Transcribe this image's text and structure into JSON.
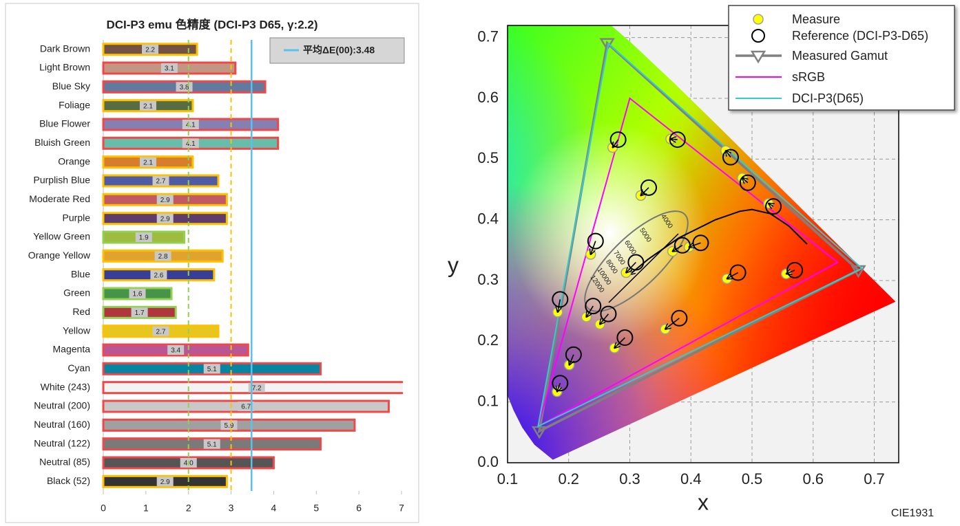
{
  "chart_data": [
    {
      "type": "bar",
      "orientation": "horizontal",
      "title": "DCI-P3 emu 色精度 (DCI-P3 D65, γ:2.2)",
      "categories": [
        "Dark Brown",
        "Light Brown",
        "Blue Sky",
        "Foliage",
        "Blue Flower",
        "Bluish Green",
        "Orange",
        "Purplish Blue",
        "Moderate Red",
        "Purple",
        "Yellow Green",
        "Orange Yellow",
        "Blue",
        "Green",
        "Red",
        "Yellow",
        "Magenta",
        "Cyan",
        "White (243)",
        "Neutral (200)",
        "Neutral (160)",
        "Neutral (122)",
        "Neutral (85)",
        "Black (52)"
      ],
      "values": [
        2.2,
        3.1,
        3.8,
        2.1,
        4.1,
        4.1,
        2.1,
        2.7,
        2.9,
        2.9,
        1.9,
        2.8,
        2.6,
        1.6,
        1.7,
        2.7,
        3.4,
        5.1,
        7.2,
        6.7,
        5.9,
        5.1,
        4.0,
        2.9
      ],
      "value_labels": [
        "2.2",
        "3.1",
        "3.8",
        "2.1",
        "4.1",
        "4.1",
        "2.1",
        "2.7",
        "2.9",
        "2.9",
        "1.9",
        "2.8",
        "2.6",
        "1.6",
        "1.7",
        "2.7",
        "3.4",
        "5.1",
        "7.2",
        "6.7",
        "5.9",
        "5.1",
        "4.0",
        "2.9"
      ],
      "colors": [
        "#735244",
        "#c29682",
        "#627a9d",
        "#576c43",
        "#8580b1",
        "#67bdaa",
        "#d67e2c",
        "#505ba6",
        "#c15a63",
        "#5e3c6c",
        "#9dbc40",
        "#e0a32e",
        "#383d96",
        "#469449",
        "#af363c",
        "#e7c71f",
        "#bb5695",
        "#0885a1",
        "#f3f3f3",
        "#c8c8c8",
        "#a0a0a0",
        "#7a7a7a",
        "#555555",
        "#343434"
      ],
      "border_colors": [
        "#ffc000",
        "#f04848",
        "#f04848",
        "#ffc000",
        "#f04848",
        "#f04848",
        "#ffc000",
        "#ffc000",
        "#ffc000",
        "#ffc000",
        "#92d050",
        "#ffc000",
        "#ffc000",
        "#92d050",
        "#92d050",
        "#ffc000",
        "#f04848",
        "#f04848",
        "#f04848",
        "#f04848",
        "#f04848",
        "#f04848",
        "#f04848",
        "#ffc000"
      ],
      "xlim": [
        0,
        7
      ],
      "xticks": [
        0,
        1,
        2,
        3,
        4,
        5,
        6,
        7
      ],
      "reference_lines": [
        {
          "value": 2,
          "color": "#92d050",
          "dashed": true
        },
        {
          "value": 3,
          "color": "#ffc000",
          "dashed": true
        }
      ],
      "average": {
        "value": 3.48,
        "label": "平均ΔE(00):3.48",
        "color": "#5bc0eb"
      }
    },
    {
      "type": "chromaticity",
      "x_label": "x",
      "y_label": "y",
      "note": "CIE1931",
      "xlim": [
        0.1,
        0.74
      ],
      "ylim": [
        0,
        0.72
      ],
      "xticks": [
        0.1,
        0.2,
        0.3,
        0.4,
        0.5,
        0.6,
        0.7
      ],
      "yticks": [
        {
          "value": 0,
          "label": "0.0"
        },
        0.1,
        0.2,
        0.3,
        0.4,
        0.5,
        0.6,
        0.7
      ],
      "grid": true,
      "series": [
        {
          "name": "Measure",
          "color": "#ffff00",
          "style": "dot",
          "x": [
            0.272,
            0.367,
            0.457,
            0.484,
            0.527,
            0.318,
            0.236,
            0.37,
            0.397,
            0.294,
            0.459,
            0.556,
            0.182,
            0.229,
            0.251,
            0.358,
            0.275,
            0.201,
            0.181
          ],
          "y": [
            0.519,
            0.533,
            0.514,
            0.469,
            0.427,
            0.44,
            0.343,
            0.348,
            0.355,
            0.313,
            0.303,
            0.311,
            0.248,
            0.24,
            0.228,
            0.22,
            0.189,
            0.161,
            0.117
          ]
        },
        {
          "name": "Reference (DCI-P3-D65)",
          "color": "#000000",
          "style": "ring",
          "x": [
            0.281,
            0.378,
            0.465,
            0.493,
            0.535,
            0.331,
            0.244,
            0.386,
            0.416,
            0.31,
            0.477,
            0.57,
            0.186,
            0.24,
            0.265,
            0.381,
            0.292,
            0.208,
            0.186
          ],
          "y": [
            0.532,
            0.532,
            0.503,
            0.461,
            0.422,
            0.453,
            0.365,
            0.358,
            0.362,
            0.33,
            0.313,
            0.317,
            0.269,
            0.258,
            0.245,
            0.238,
            0.206,
            0.178,
            0.131
          ]
        },
        {
          "name": "Measured Gamut",
          "color": "#808080",
          "style": "gamut-marked",
          "x": [
            0.674,
            0.263,
            0.152
          ],
          "y": [
            0.317,
            0.691,
            0.052
          ]
        },
        {
          "name": "sRGB",
          "color": "#ff00ff",
          "style": "gamut",
          "x": [
            0.64,
            0.3,
            0.15
          ],
          "y": [
            0.33,
            0.6,
            0.06
          ]
        },
        {
          "name": "DCI-P3(D65)",
          "color": "#33cccc",
          "style": "gamut",
          "x": [
            0.68,
            0.265,
            0.15
          ],
          "y": [
            0.32,
            0.69,
            0.06
          ]
        }
      ],
      "planckian_locus": {
        "x": [
          0.3,
          0.33,
          0.38,
          0.44,
          0.48,
          0.5,
          0.53,
          0.56,
          0.59
        ],
        "y": [
          0.31,
          0.335,
          0.37,
          0.4,
          0.414,
          0.417,
          0.41,
          0.39,
          0.36
        ]
      },
      "cct_labels": [
        4000,
        5000,
        6000,
        7000,
        8000,
        10000,
        12000
      ]
    }
  ]
}
